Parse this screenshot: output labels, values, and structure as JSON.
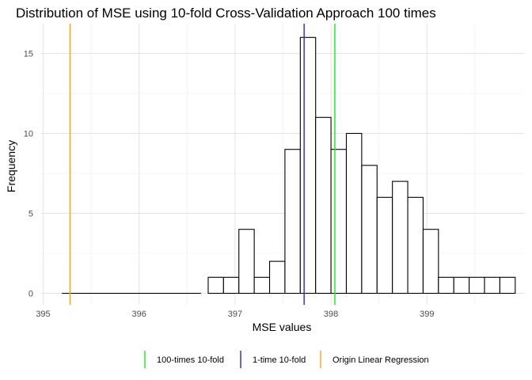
{
  "chart_data": {
    "type": "histogram",
    "title": "Distribution of MSE using 10-fold Cross-Validation Approach 100 times",
    "xlabel": "MSE values",
    "ylabel": "Frequency",
    "xlim": [
      395,
      399.8
    ],
    "ylim": [
      0,
      16.5
    ],
    "xticks": [
      395,
      396,
      397,
      398,
      399
    ],
    "yticks": [
      0,
      5,
      10,
      15
    ],
    "grid": true,
    "legend_position": "bottom",
    "bin_width": 0.16,
    "bins": [
      {
        "start": 395.2,
        "end": 395.36,
        "count": 0
      },
      {
        "start": 395.36,
        "end": 395.52,
        "count": 0
      },
      {
        "start": 395.52,
        "end": 395.68,
        "count": 0
      },
      {
        "start": 395.68,
        "end": 395.84,
        "count": 0
      },
      {
        "start": 395.84,
        "end": 396.0,
        "count": 0
      },
      {
        "start": 396.0,
        "end": 396.16,
        "count": 0
      },
      {
        "start": 396.16,
        "end": 396.32,
        "count": 0
      },
      {
        "start": 396.32,
        "end": 396.48,
        "count": 0
      },
      {
        "start": 396.48,
        "end": 396.64,
        "count": 0
      },
      {
        "start": 396.72,
        "end": 396.88,
        "count": 1
      },
      {
        "start": 396.88,
        "end": 397.04,
        "count": 1
      },
      {
        "start": 397.04,
        "end": 397.2,
        "count": 4
      },
      {
        "start": 397.2,
        "end": 397.36,
        "count": 1
      },
      {
        "start": 397.36,
        "end": 397.52,
        "count": 2
      },
      {
        "start": 397.52,
        "end": 397.68,
        "count": 9
      },
      {
        "start": 397.68,
        "end": 397.84,
        "count": 16
      },
      {
        "start": 397.84,
        "end": 398.0,
        "count": 11
      },
      {
        "start": 398.0,
        "end": 398.16,
        "count": 9
      },
      {
        "start": 398.16,
        "end": 398.32,
        "count": 10
      },
      {
        "start": 398.32,
        "end": 398.48,
        "count": 8
      },
      {
        "start": 398.48,
        "end": 398.64,
        "count": 6
      },
      {
        "start": 398.64,
        "end": 398.8,
        "count": 7
      },
      {
        "start": 398.8,
        "end": 398.96,
        "count": 6
      },
      {
        "start": 398.96,
        "end": 399.12,
        "count": 4
      },
      {
        "start": 399.12,
        "end": 399.28,
        "count": 1
      },
      {
        "start": 399.28,
        "end": 399.44,
        "count": 1
      },
      {
        "start": 399.44,
        "end": 399.6,
        "count": 1
      },
      {
        "start": 399.6,
        "end": 399.76,
        "count": 1
      },
      {
        "start": 399.76,
        "end": 399.92,
        "count": 1
      }
    ],
    "vlines": [
      {
        "name": "100-times 10-fold",
        "x": 398.04,
        "color": "#22ee22"
      },
      {
        "name": "1-time 10-fold",
        "x": 397.72,
        "color": "#3333dd"
      },
      {
        "name": "Origin Linear Regression",
        "x": 395.28,
        "color": "#f5a833"
      }
    ]
  }
}
